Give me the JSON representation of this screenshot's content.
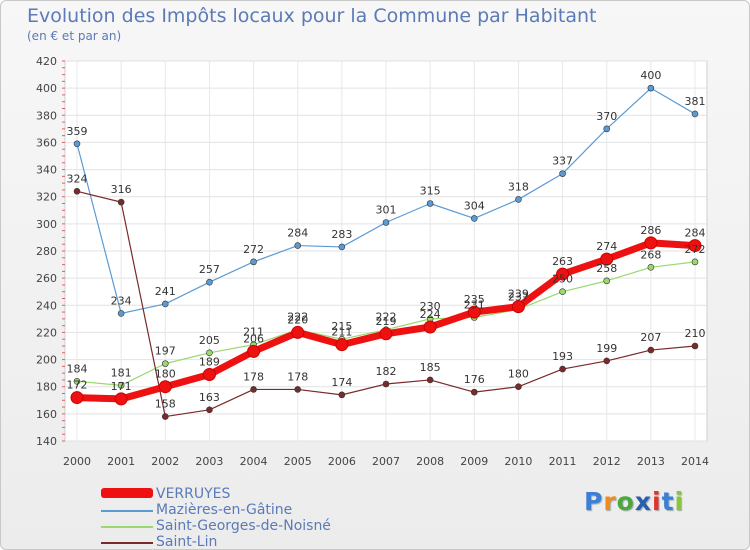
{
  "page": {
    "title": "Evolution des Impôts locaux pour la Commune par Habitant",
    "subtitle": "(en € et par an)"
  },
  "brand": {
    "letters": [
      "P",
      "r",
      "o",
      "x",
      "i",
      "t",
      "i"
    ],
    "colors": [
      "#3b7fd6",
      "#f08a1f",
      "#4aa83c",
      "#2a5db0",
      "#e5322e",
      "#3b7fd6",
      "#8ac43f"
    ]
  },
  "chart_data": {
    "type": "line",
    "title": "Evolution des Impôts locaux pour la Commune par Habitant",
    "subtitle": "(en € et par an)",
    "x": [
      "2000",
      "2001",
      "2002",
      "2003",
      "2004",
      "2005",
      "2006",
      "2007",
      "2008",
      "2009",
      "2010",
      "2011",
      "2012",
      "2013",
      "2014"
    ],
    "ylim": [
      140,
      420
    ],
    "yticks": [
      140,
      160,
      180,
      200,
      220,
      240,
      260,
      280,
      300,
      320,
      340,
      360,
      380,
      400,
      420
    ],
    "grid": true,
    "legend_position": "bottom-left",
    "series": [
      {
        "name": "VERRUYES",
        "color": "#ee1111",
        "values": [
          172,
          171,
          180,
          189,
          206,
          220,
          211,
          219,
          224,
          235,
          239,
          263,
          274,
          286,
          284
        ],
        "labels": [
          "172",
          "171",
          "180",
          "189",
          "206",
          "220",
          "211",
          "219",
          "224",
          "235",
          "239",
          "263",
          "274",
          "286",
          "284"
        ]
      },
      {
        "name": "Mazières-en-Gâtine",
        "color": "#5b9bd5",
        "values": [
          359,
          234,
          241,
          257,
          272,
          284,
          283,
          301,
          315,
          304,
          318,
          337,
          370,
          400,
          381
        ],
        "labels": [
          "359",
          "234",
          "241",
          "257",
          "272",
          "284",
          "283",
          "301",
          "315",
          "304",
          "318",
          "337",
          "370",
          "400",
          "381"
        ]
      },
      {
        "name": "Saint-Georges-de-Noisné",
        "color": "#9bd86e",
        "values": [
          184,
          181,
          197,
          205,
          211,
          222,
          215,
          222,
          230,
          231,
          237,
          250,
          258,
          268,
          272
        ],
        "labels": [
          "184",
          "181",
          "197",
          "205",
          "211",
          "222",
          "215",
          "222",
          "230",
          "231",
          "237",
          "250",
          "258",
          "268",
          "272"
        ]
      },
      {
        "name": "Saint-Lin",
        "color": "#7a2a2a",
        "values": [
          324,
          316,
          158,
          163,
          178,
          178,
          174,
          182,
          185,
          176,
          180,
          193,
          199,
          207,
          210
        ],
        "labels": [
          "324",
          "316",
          "158",
          "163",
          "178",
          "178",
          "174",
          "182",
          "185",
          "176",
          "180",
          "193",
          "199",
          "207",
          "210"
        ]
      }
    ]
  }
}
